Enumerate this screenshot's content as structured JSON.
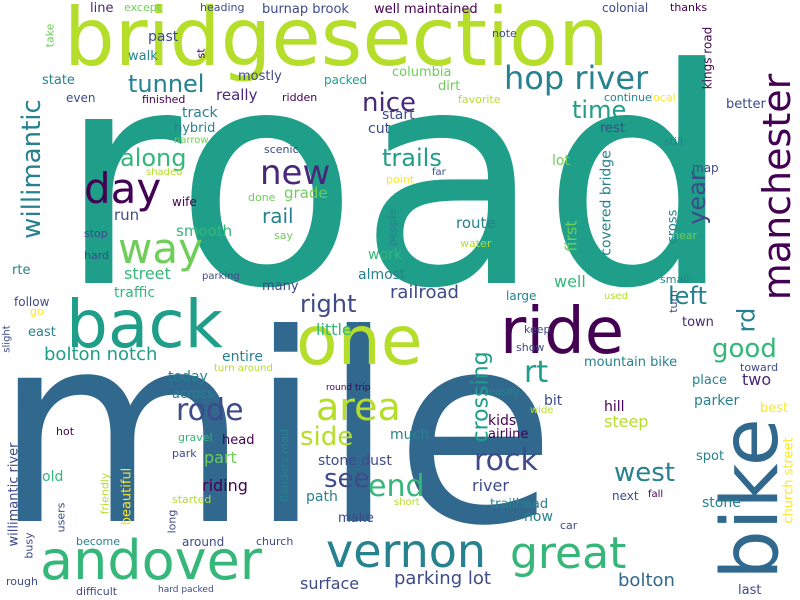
{
  "palette": {
    "purple": "#440154",
    "dark_purple": "#482878",
    "indigo": "#3e4a89",
    "blue": "#31688e",
    "teal_blue": "#26828e",
    "teal": "#1f9e89",
    "green": "#35b779",
    "light_green": "#6ece58",
    "lime": "#b5de2b",
    "yellow": "#fde725"
  },
  "words": [
    "road",
    "mile",
    "bridgesection",
    "back",
    "one",
    "bike",
    "ride",
    "vernon",
    "andover",
    "great",
    "hop river",
    "manchester",
    "day",
    "way",
    "area",
    "new",
    "willimantic",
    "tunnel",
    "along",
    "nice",
    "trails",
    "time",
    "year",
    "rail",
    "see",
    "side",
    "end",
    "rock",
    "right",
    "left",
    "good",
    "rd",
    "crossing",
    "rt",
    "rode",
    "west",
    "bolton notch",
    "railroad",
    "parking lot",
    "riding",
    "part",
    "river",
    "surface",
    "bolton",
    "stone dust",
    "first",
    "covered bridge",
    "burnap brook",
    "well maintained",
    "columbia",
    "kings road",
    "better",
    "colonial",
    "thanks",
    "heading",
    "except",
    "line",
    "past",
    "walk",
    "st",
    "mostly",
    "packed",
    "state",
    "even",
    "really",
    "finished",
    "ridden",
    "dirt",
    "favorite",
    "continue",
    "local",
    "start",
    "rest",
    "hybrid",
    "track",
    "cut",
    "narrow",
    "scenic",
    "lot",
    "still",
    "shaded",
    "far",
    "map",
    "wife",
    "point",
    "done",
    "people",
    "grade",
    "route",
    "cross",
    "smooth",
    "run",
    "stop",
    "say",
    "work",
    "water",
    "near",
    "hard",
    "street",
    "rte",
    "almost",
    "small",
    "traffic",
    "parking",
    "many",
    "well",
    "follow",
    "go",
    "slight",
    "east",
    "little",
    "railroad",
    "large",
    "used",
    "turn",
    "keep",
    "show",
    "town",
    "toward",
    "entire",
    "turn around",
    "today",
    "mountain bike",
    "place",
    "two",
    "across",
    "round trip",
    "easily",
    "kids",
    "bit",
    "wide",
    "parker",
    "best",
    "much",
    "hill",
    "steep",
    "airline",
    "head",
    "gravel",
    "hot",
    "park",
    "willimantic river",
    "beautiful",
    "friendly",
    "old",
    "flanders road",
    "spot",
    "church street",
    "path",
    "trailhead",
    "next",
    "fall",
    "stone",
    "started",
    "short",
    "make",
    "now",
    "users",
    "long",
    "car",
    "busy",
    "become",
    "around",
    "church",
    "rough",
    "difficult",
    "hard packed",
    "last",
    "note",
    "take",
    "rt"
  ]
}
